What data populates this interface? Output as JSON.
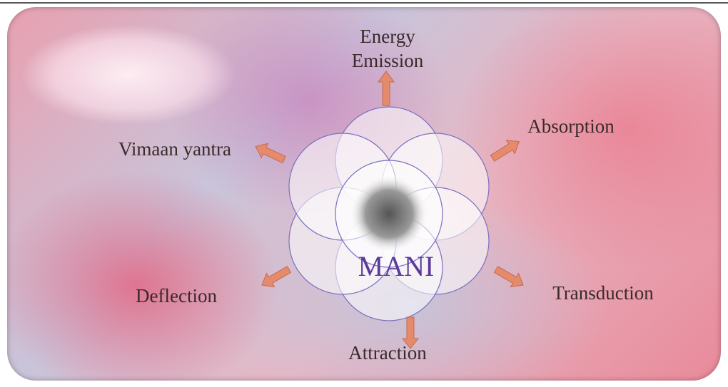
{
  "center": {
    "label": "MANI"
  },
  "nodes": [
    {
      "label": "Energy Emission"
    },
    {
      "label": "Absorption"
    },
    {
      "label": "Transduction"
    },
    {
      "label": "Attraction"
    },
    {
      "label": "Deflection"
    },
    {
      "label": "Vimaan yantra"
    }
  ]
}
